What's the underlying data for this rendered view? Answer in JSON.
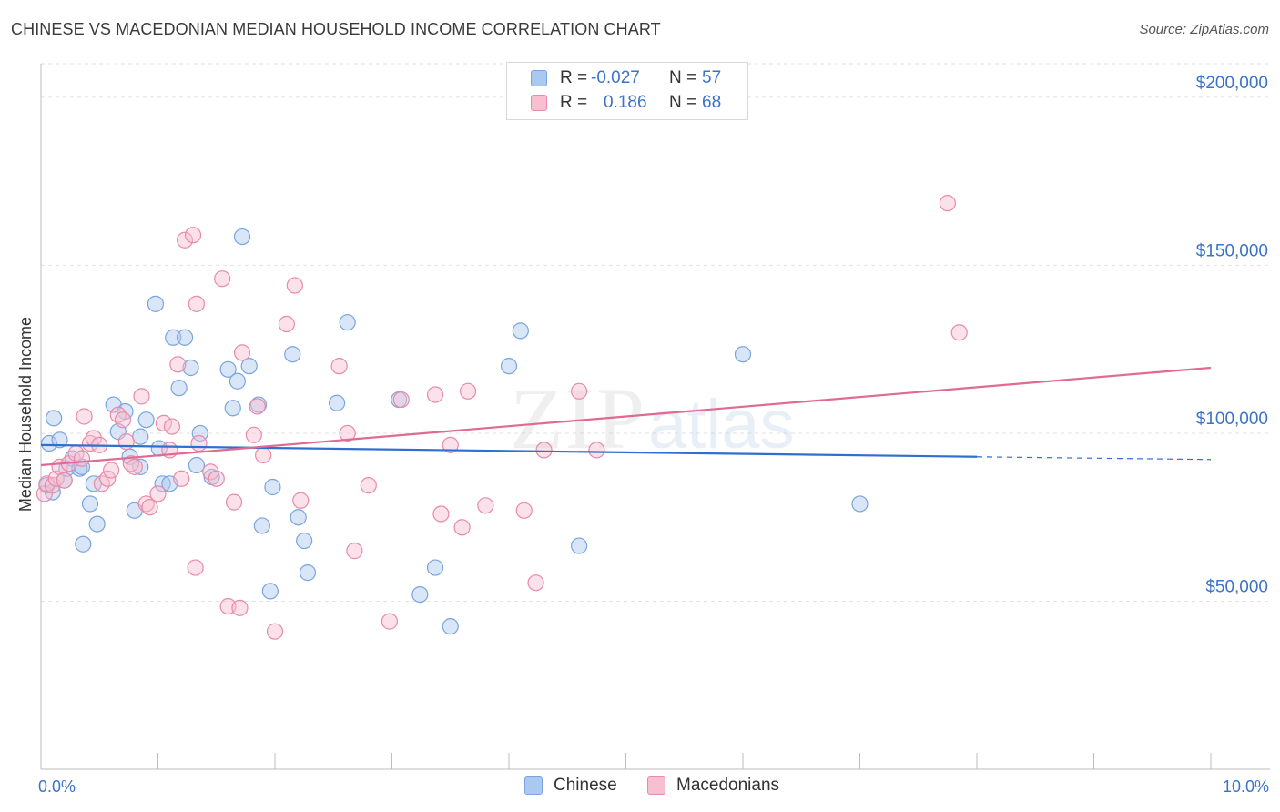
{
  "title": "CHINESE VS MACEDONIAN MEDIAN HOUSEHOLD INCOME CORRELATION CHART",
  "source": "Source: ZipAtlas.com",
  "watermark": {
    "zip": "ZIP",
    "atlas": "atlas"
  },
  "legend": {
    "rows": [
      {
        "r_label": "R =",
        "r_value": "-0.027",
        "n_label": "N =",
        "n_value": "57",
        "color": "#aac8f0",
        "border": "#7aa4de"
      },
      {
        "r_label": "R =",
        "r_value": "0.186",
        "n_label": "N =",
        "n_value": "68",
        "color": "#f7bfd0",
        "border": "#e88aa8"
      }
    ]
  },
  "bottom_legend": [
    {
      "label": "Chinese",
      "color": "#aac8f0",
      "border": "#7aa4de"
    },
    {
      "label": "Macedonians",
      "color": "#f7bfd0",
      "border": "#e88aa8"
    }
  ],
  "chart_data": {
    "type": "scatter",
    "title": "CHINESE VS MACEDONIAN MEDIAN HOUSEHOLD INCOME CORRELATION CHART",
    "xlabel": "",
    "ylabel": "Median Household Income",
    "xlim": [
      0,
      10
    ],
    "ylim": [
      0,
      210000
    ],
    "x_tick_labels": [
      {
        "x": 0,
        "label": "0.0%"
      },
      {
        "x": 10,
        "label": "10.0%"
      }
    ],
    "y_ticks": [
      {
        "y": 50000,
        "label": "$50,000"
      },
      {
        "y": 100000,
        "label": "$100,000"
      },
      {
        "y": 150000,
        "label": "$150,000"
      },
      {
        "y": 200000,
        "label": "$200,000"
      }
    ],
    "grid": true,
    "legend_position": "top-center",
    "series": [
      {
        "name": "Chinese",
        "color": "#aac8f0",
        "stroke": "#7aa4de",
        "trend": {
          "x0": 0,
          "y0": 96500,
          "x1": 8.0,
          "y1": 93000,
          "dash_to": 10,
          "dash_y": 92200,
          "color": "#2f6fcf"
        },
        "points": [
          [
            0.07,
            97000
          ],
          [
            0.11,
            104500
          ],
          [
            0.16,
            98000
          ],
          [
            0.2,
            86000
          ],
          [
            0.22,
            89500
          ],
          [
            0.27,
            92500
          ],
          [
            0.33,
            89500
          ],
          [
            0.36,
            67000
          ],
          [
            0.42,
            79000
          ],
          [
            0.45,
            85000
          ],
          [
            0.48,
            73000
          ],
          [
            0.62,
            108500
          ],
          [
            0.66,
            100500
          ],
          [
            0.72,
            106500
          ],
          [
            0.76,
            93000
          ],
          [
            0.8,
            77000
          ],
          [
            0.85,
            90000
          ],
          [
            0.85,
            99000
          ],
          [
            0.9,
            104000
          ],
          [
            0.98,
            138500
          ],
          [
            1.01,
            95500
          ],
          [
            1.04,
            85000
          ],
          [
            1.1,
            85000
          ],
          [
            1.13,
            128500
          ],
          [
            1.18,
            113500
          ],
          [
            1.23,
            128500
          ],
          [
            1.28,
            119500
          ],
          [
            1.33,
            90500
          ],
          [
            1.36,
            100000
          ],
          [
            1.46,
            87000
          ],
          [
            1.6,
            119000
          ],
          [
            1.64,
            107500
          ],
          [
            1.68,
            115500
          ],
          [
            1.72,
            158500
          ],
          [
            1.78,
            120000
          ],
          [
            1.86,
            108500
          ],
          [
            1.89,
            72500
          ],
          [
            1.98,
            84000
          ],
          [
            1.96,
            53000
          ],
          [
            2.15,
            123500
          ],
          [
            2.2,
            75000
          ],
          [
            2.25,
            68000
          ],
          [
            2.28,
            58500
          ],
          [
            2.53,
            109000
          ],
          [
            2.62,
            133000
          ],
          [
            3.06,
            110000
          ],
          [
            3.24,
            52000
          ],
          [
            3.37,
            60000
          ],
          [
            3.5,
            42500
          ],
          [
            4.0,
            120000
          ],
          [
            4.1,
            130500
          ],
          [
            4.6,
            66500
          ],
          [
            6.0,
            123500
          ],
          [
            7.0,
            79000
          ],
          [
            0.1,
            82500
          ],
          [
            0.05,
            84500
          ],
          [
            0.35,
            90000
          ]
        ]
      },
      {
        "name": "Macedonians",
        "color": "#f7bfd0",
        "stroke": "#e88aa8",
        "trend": {
          "x0": 0,
          "y0": 90500,
          "x1": 10,
          "y1": 119500,
          "color": "#e06a92"
        },
        "points": [
          [
            0.03,
            82000
          ],
          [
            0.05,
            85000
          ],
          [
            0.1,
            84500
          ],
          [
            0.13,
            86500
          ],
          [
            0.16,
            90000
          ],
          [
            0.2,
            86000
          ],
          [
            0.24,
            91000
          ],
          [
            0.3,
            94000
          ],
          [
            0.35,
            92500
          ],
          [
            0.37,
            105000
          ],
          [
            0.42,
            97000
          ],
          [
            0.45,
            98500
          ],
          [
            0.5,
            96500
          ],
          [
            0.52,
            85000
          ],
          [
            0.57,
            86500
          ],
          [
            0.6,
            89000
          ],
          [
            0.66,
            105500
          ],
          [
            0.7,
            104000
          ],
          [
            0.73,
            97500
          ],
          [
            0.77,
            91000
          ],
          [
            0.8,
            90000
          ],
          [
            0.86,
            111000
          ],
          [
            0.9,
            79000
          ],
          [
            0.93,
            78000
          ],
          [
            1.0,
            82000
          ],
          [
            1.05,
            103000
          ],
          [
            1.1,
            95000
          ],
          [
            1.12,
            102000
          ],
          [
            1.17,
            120500
          ],
          [
            1.2,
            86500
          ],
          [
            1.23,
            157500
          ],
          [
            1.3,
            159000
          ],
          [
            1.35,
            97000
          ],
          [
            1.32,
            60000
          ],
          [
            1.33,
            138500
          ],
          [
            1.45,
            88500
          ],
          [
            1.5,
            86500
          ],
          [
            1.55,
            146000
          ],
          [
            1.6,
            48500
          ],
          [
            1.65,
            79500
          ],
          [
            1.7,
            48000
          ],
          [
            1.72,
            124000
          ],
          [
            1.82,
            99500
          ],
          [
            1.85,
            108000
          ],
          [
            1.9,
            93500
          ],
          [
            2.0,
            41000
          ],
          [
            2.1,
            132500
          ],
          [
            2.17,
            144000
          ],
          [
            2.22,
            80000
          ],
          [
            2.55,
            120000
          ],
          [
            2.62,
            100000
          ],
          [
            2.8,
            84500
          ],
          [
            2.68,
            65000
          ],
          [
            2.98,
            44000
          ],
          [
            3.08,
            110000
          ],
          [
            3.37,
            111500
          ],
          [
            3.42,
            76000
          ],
          [
            3.5,
            96500
          ],
          [
            3.6,
            72000
          ],
          [
            3.65,
            112500
          ],
          [
            3.8,
            78500
          ],
          [
            4.13,
            77000
          ],
          [
            4.23,
            55500
          ],
          [
            4.3,
            95000
          ],
          [
            4.6,
            112500
          ],
          [
            4.75,
            95000
          ],
          [
            7.75,
            168500
          ],
          [
            7.85,
            130000
          ]
        ]
      }
    ]
  }
}
